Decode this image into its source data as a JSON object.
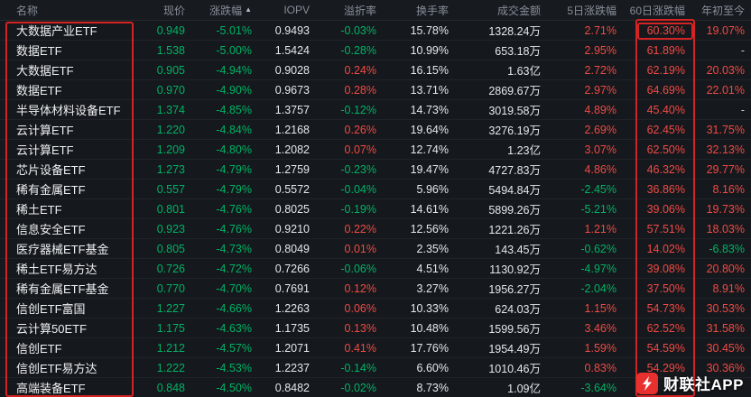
{
  "colors": {
    "up_red": "#f04a45",
    "down_green": "#00b266",
    "header_text": "#878e98",
    "annotation_red": "#e52525",
    "background": "#15181c",
    "logo_red": "#e8312f"
  },
  "table": {
    "columns": [
      {
        "label": "名称",
        "field": "name",
        "align": "left",
        "color": "name"
      },
      {
        "label": "现价",
        "field": "price",
        "color": "sign_of_change"
      },
      {
        "label": "涨跌幅",
        "field": "change",
        "color": "sign",
        "sort_indicator": true
      },
      {
        "label": "IOPV",
        "field": "iopv",
        "color": "plain"
      },
      {
        "label": "溢折率",
        "field": "premium",
        "color": "sign"
      },
      {
        "label": "换手率",
        "field": "turnover",
        "color": "plain"
      },
      {
        "label": "成交金额",
        "field": "amount",
        "color": "plain"
      },
      {
        "label": "5日涨跌幅",
        "field": "d5",
        "color": "sign"
      },
      {
        "label": "60日涨跌幅",
        "field": "d60",
        "color": "sign"
      },
      {
        "label": "年初至今",
        "field": "ytd",
        "color": "sign"
      }
    ],
    "rows": [
      {
        "name": "大数据产业ETF",
        "price": "0.949",
        "change": "-5.01%",
        "iopv": "0.9493",
        "premium": "-0.03%",
        "turnover": "15.78%",
        "amount": "1328.24万",
        "d5": "2.71%",
        "d60": "60.30%",
        "ytd": "19.07%"
      },
      {
        "name": "数据ETF",
        "price": "1.538",
        "change": "-5.00%",
        "iopv": "1.5424",
        "premium": "-0.28%",
        "turnover": "10.99%",
        "amount": "653.18万",
        "d5": "2.95%",
        "d60": "61.89%",
        "ytd": "-"
      },
      {
        "name": "大数据ETF",
        "price": "0.905",
        "change": "-4.94%",
        "iopv": "0.9028",
        "premium": "0.24%",
        "turnover": "16.15%",
        "amount": "1.63亿",
        "d5": "2.72%",
        "d60": "62.19%",
        "ytd": "20.03%"
      },
      {
        "name": "数据ETF",
        "price": "0.970",
        "change": "-4.90%",
        "iopv": "0.9673",
        "premium": "0.28%",
        "turnover": "13.71%",
        "amount": "2869.67万",
        "d5": "2.97%",
        "d60": "64.69%",
        "ytd": "22.01%"
      },
      {
        "name": "半导体材料设备ETF",
        "price": "1.374",
        "change": "-4.85%",
        "iopv": "1.3757",
        "premium": "-0.12%",
        "turnover": "14.73%",
        "amount": "3019.58万",
        "d5": "4.89%",
        "d60": "45.40%",
        "ytd": "-"
      },
      {
        "name": "云计算ETF",
        "price": "1.220",
        "change": "-4.84%",
        "iopv": "1.2168",
        "premium": "0.26%",
        "turnover": "19.64%",
        "amount": "3276.19万",
        "d5": "2.69%",
        "d60": "62.45%",
        "ytd": "31.75%"
      },
      {
        "name": "云计算ETF",
        "price": "1.209",
        "change": "-4.80%",
        "iopv": "1.2082",
        "premium": "0.07%",
        "turnover": "12.74%",
        "amount": "1.23亿",
        "d5": "3.07%",
        "d60": "62.50%",
        "ytd": "32.13%"
      },
      {
        "name": "芯片设备ETF",
        "price": "1.273",
        "change": "-4.79%",
        "iopv": "1.2759",
        "premium": "-0.23%",
        "turnover": "19.47%",
        "amount": "4727.83万",
        "d5": "4.86%",
        "d60": "46.32%",
        "ytd": "29.77%"
      },
      {
        "name": "稀有金属ETF",
        "price": "0.557",
        "change": "-4.79%",
        "iopv": "0.5572",
        "premium": "-0.04%",
        "turnover": "5.96%",
        "amount": "5494.84万",
        "d5": "-2.45%",
        "d60": "36.86%",
        "ytd": "8.16%"
      },
      {
        "name": "稀土ETF",
        "price": "0.801",
        "change": "-4.76%",
        "iopv": "0.8025",
        "premium": "-0.19%",
        "turnover": "14.61%",
        "amount": "5899.26万",
        "d5": "-5.21%",
        "d60": "39.06%",
        "ytd": "19.73%"
      },
      {
        "name": "信息安全ETF",
        "price": "0.923",
        "change": "-4.76%",
        "iopv": "0.9210",
        "premium": "0.22%",
        "turnover": "12.56%",
        "amount": "1221.26万",
        "d5": "1.21%",
        "d60": "57.51%",
        "ytd": "18.03%"
      },
      {
        "name": "医疗器械ETF基金",
        "price": "0.805",
        "change": "-4.73%",
        "iopv": "0.8049",
        "premium": "0.01%",
        "turnover": "2.35%",
        "amount": "143.45万",
        "d5": "-0.62%",
        "d60": "14.02%",
        "ytd": "-6.83%"
      },
      {
        "name": "稀土ETF易方达",
        "price": "0.726",
        "change": "-4.72%",
        "iopv": "0.7266",
        "premium": "-0.06%",
        "turnover": "4.51%",
        "amount": "1130.92万",
        "d5": "-4.97%",
        "d60": "39.08%",
        "ytd": "20.80%"
      },
      {
        "name": "稀有金属ETF基金",
        "price": "0.770",
        "change": "-4.70%",
        "iopv": "0.7691",
        "premium": "0.12%",
        "turnover": "3.27%",
        "amount": "1956.27万",
        "d5": "-2.04%",
        "d60": "37.50%",
        "ytd": "8.91%"
      },
      {
        "name": "信创ETF富国",
        "price": "1.227",
        "change": "-4.66%",
        "iopv": "1.2263",
        "premium": "0.06%",
        "turnover": "10.33%",
        "amount": "624.03万",
        "d5": "1.15%",
        "d60": "54.73%",
        "ytd": "30.53%"
      },
      {
        "name": "云计算50ETF",
        "price": "1.175",
        "change": "-4.63%",
        "iopv": "1.1735",
        "premium": "0.13%",
        "turnover": "10.48%",
        "amount": "1599.56万",
        "d5": "3.46%",
        "d60": "62.52%",
        "ytd": "31.58%"
      },
      {
        "name": "信创ETF",
        "price": "1.212",
        "change": "-4.57%",
        "iopv": "1.2071",
        "premium": "0.41%",
        "turnover": "17.76%",
        "amount": "1954.49万",
        "d5": "1.59%",
        "d60": "54.59%",
        "ytd": "30.45%"
      },
      {
        "name": "信创ETF易方达",
        "price": "1.222",
        "change": "-4.53%",
        "iopv": "1.2237",
        "premium": "-0.14%",
        "turnover": "6.60%",
        "amount": "1010.46万",
        "d5": "0.83%",
        "d60": "54.29%",
        "ytd": "30.36%"
      },
      {
        "name": "高端装备ETF",
        "price": "0.848",
        "change": "-4.50%",
        "iopv": "0.8482",
        "premium": "-0.02%",
        "turnover": "8.73%",
        "amount": "1.09亿",
        "d5": "-3.64%",
        "d60": "",
        "ytd": ""
      }
    ]
  },
  "annotations": {
    "boxes": [
      "name-column",
      "60day-column",
      "top-60day-value"
    ]
  },
  "watermark": {
    "app_name": "财联社APP",
    "logo": "lightning-icon"
  }
}
